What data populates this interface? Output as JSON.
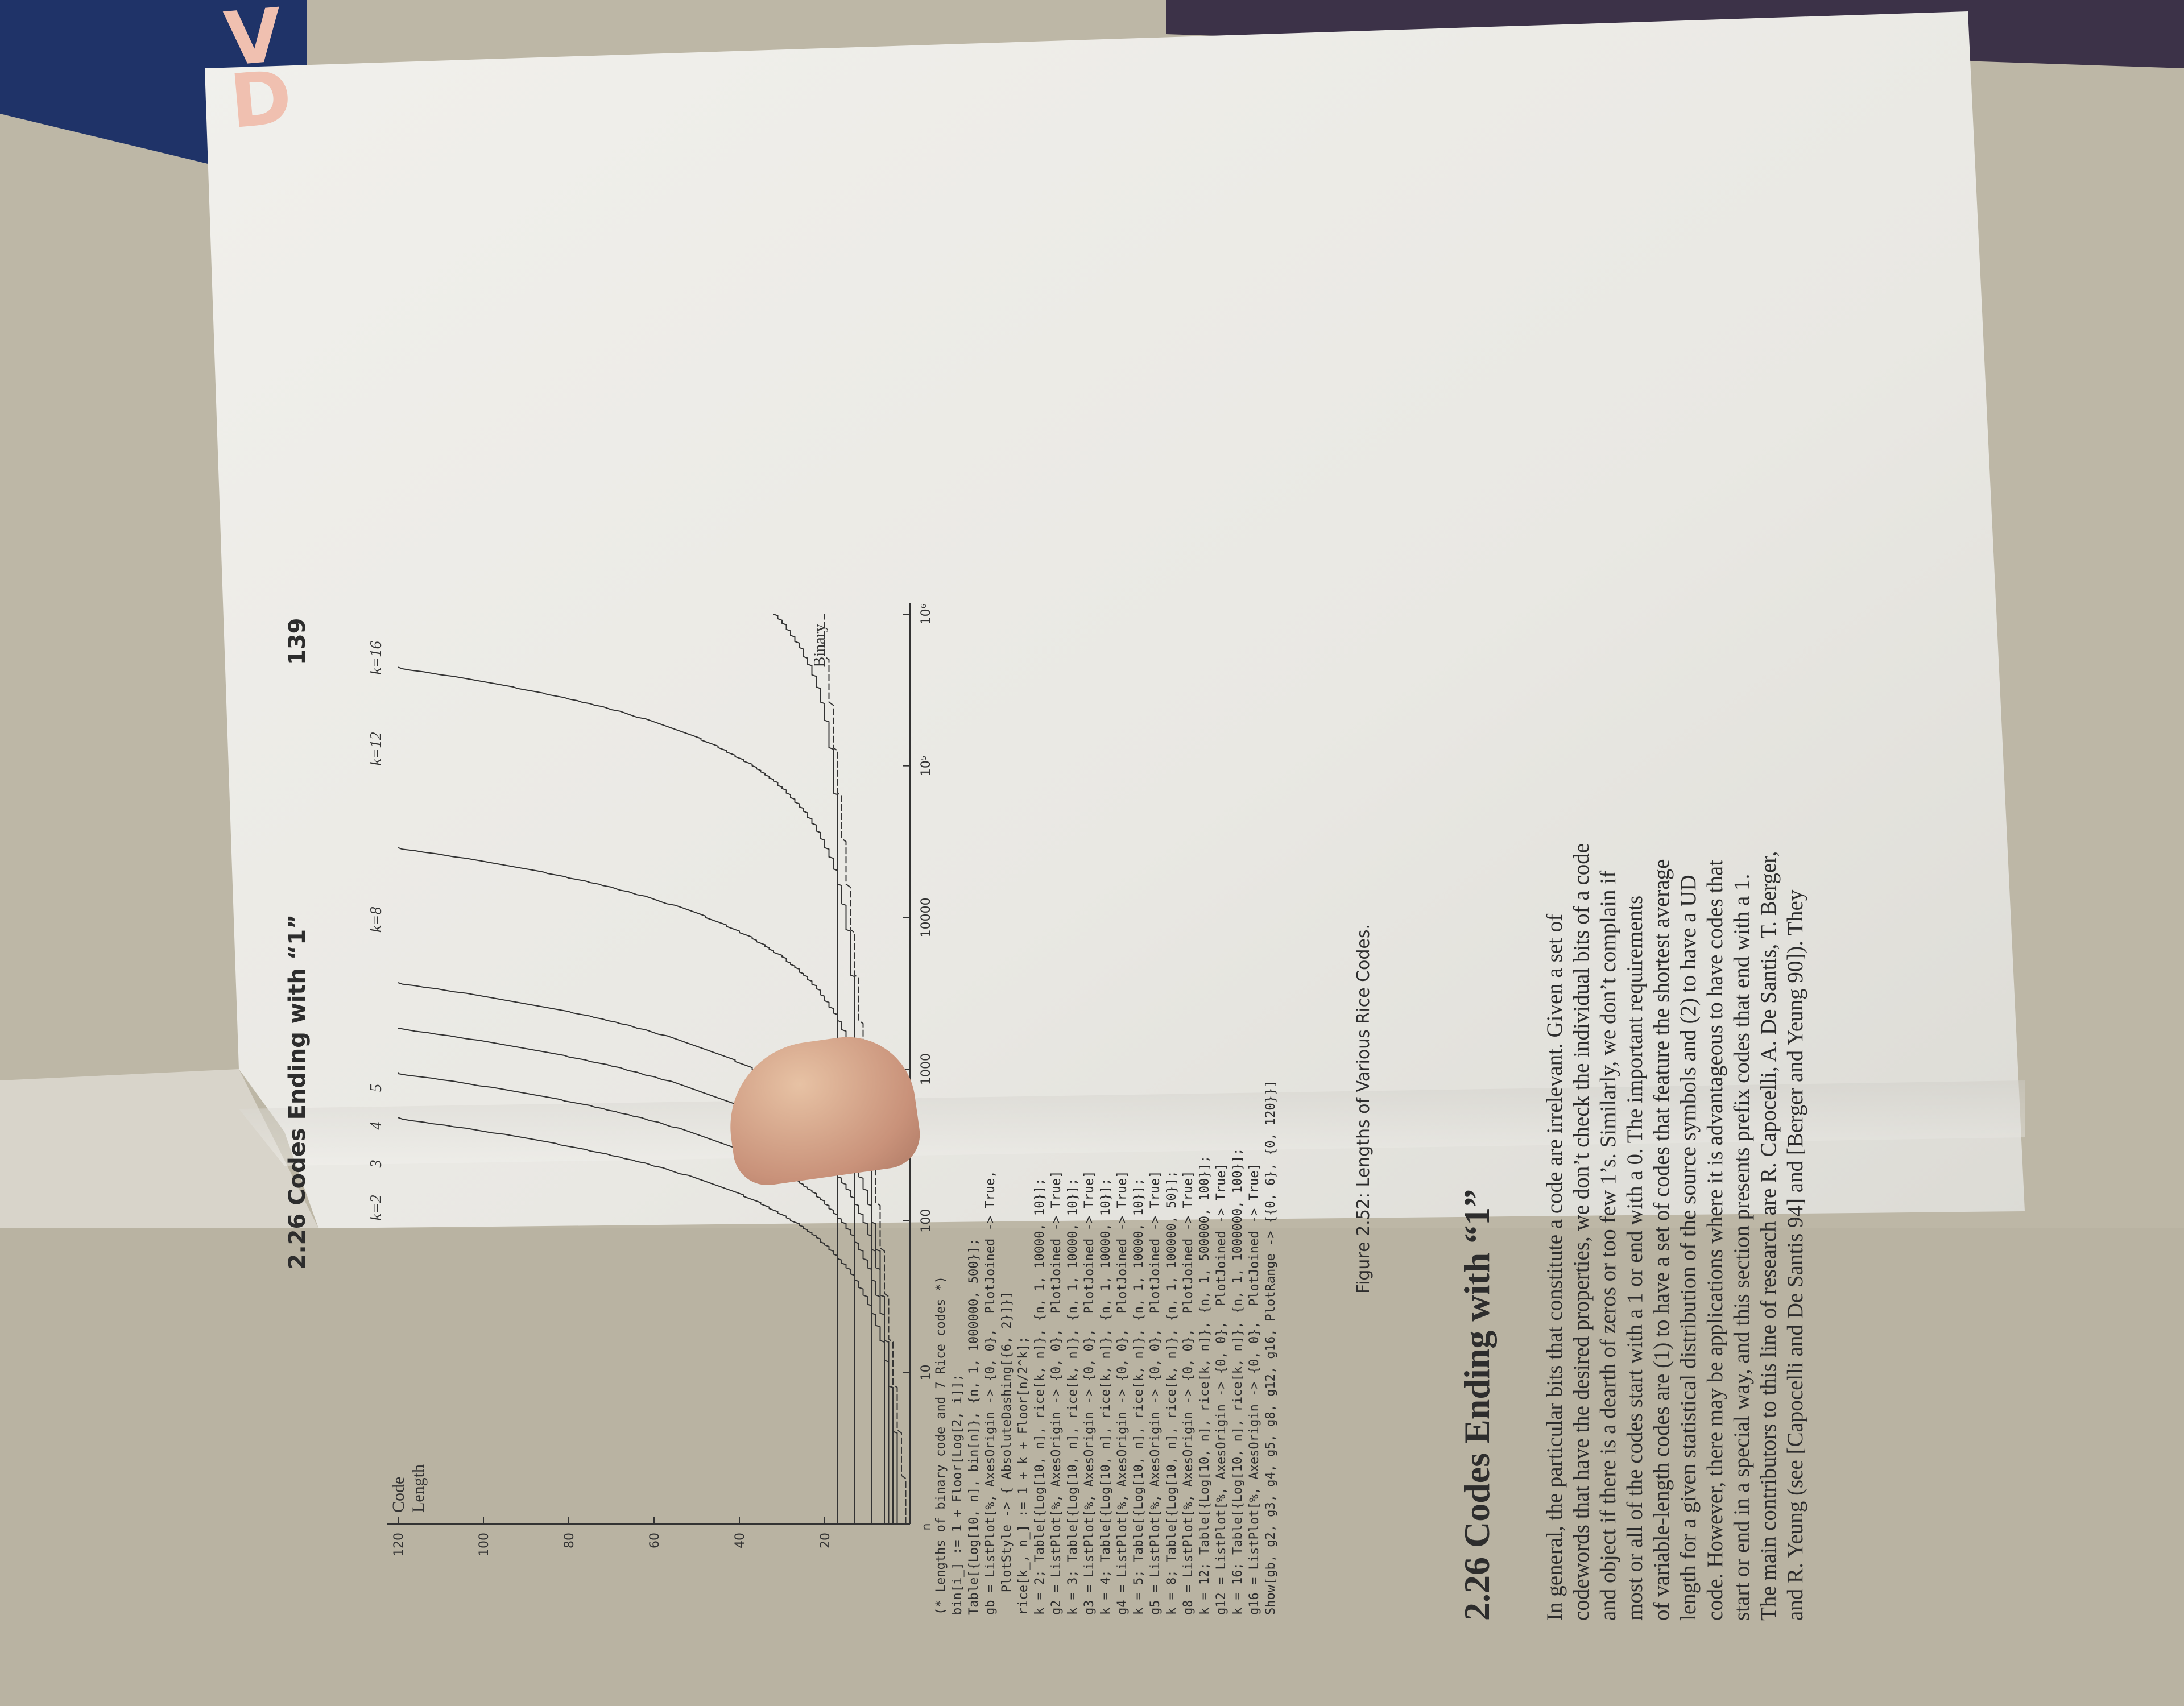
{
  "running_head": "2.26 Codes Ending with “1”",
  "page_number": "139",
  "book_title_fragment": "V\nD",
  "figure": {
    "ylabel_line1": "Code",
    "ylabel_line2": "Length",
    "y_ticks": [
      "20",
      "40",
      "60",
      "80",
      "100",
      "120"
    ],
    "x_ticks": [
      "10",
      "100",
      "1000",
      "10000",
      "10⁵",
      "10⁶"
    ],
    "x_origin": "n",
    "curve_labels": [
      "k=2",
      "3",
      "4",
      "5",
      "k=8",
      "k=12",
      "k=16"
    ],
    "binary_label": "Binary",
    "caption": "Figure 2.52: Lengths of Various Rice Codes."
  },
  "code_lines": [
    "(* Lengths of binary code and 7 Rice codes *)",
    "bin[i_] := 1 + Floor[Log[2, i]];",
    "Table[{Log[10, n], bin[n]}, {n, 1, 1000000, 500}];",
    "gb = ListPlot[%, AxesOrigin -> {0, 0},  PlotJoined -> True,",
    "   PlotStyle -> { AbsoluteDashing[{6, 2}]}]",
    "rice[k_, n_] := 1 + k + Floor[n/2^k];",
    "k = 2; Table[{Log[10, n], rice[k, n]}, {n, 1, 10000, 10}];",
    "g2 = ListPlot[%, AxesOrigin -> {0, 0},  PlotJoined -> True]",
    "k = 3; Table[{Log[10, n], rice[k, n]}, {n, 1, 10000, 10}];",
    "g3 = ListPlot[%, AxesOrigin -> {0, 0},  PlotJoined -> True]",
    "k = 4; Table[{Log[10, n], rice[k, n]}, {n, 1, 10000, 10}];",
    "g4 = ListPlot[%, AxesOrigin -> {0, 0},  PlotJoined -> True]",
    "k = 5; Table[{Log[10, n], rice[k, n]}, {n, 1, 10000, 10}];",
    "g5 = ListPlot[%, AxesOrigin -> {0, 0},  PlotJoined -> True]",
    "k = 8; Table[{Log[10, n], rice[k, n]}, {n, 1, 100000, 50}];",
    "g8 = ListPlot[%, AxesOrigin -> {0, 0},  PlotJoined -> True]",
    "k = 12; Table[{Log[10, n], rice[k, n]}, {n, 1, 500000, 100}];",
    "g12 = ListPlot[%, AxesOrigin -> {0, 0},  PlotJoined -> True]",
    "k = 16; Table[{Log[10, n], rice[k, n]}, {n, 1, 1000000, 100}];",
    "g16 = ListPlot[%, AxesOrigin -> {0, 0},  PlotJoined -> True]",
    "Show[gb, g2, g3, g4, g5, g8, g12, g16, PlotRange -> {{0, 6}, {0, 120}}]"
  ],
  "section_heading": "2.26 Codes Ending with “1”",
  "paragraph_lines": [
    "In general, the particular bits that constitute a code are irrelevant.  Given a set of",
    "codewords that have the desired properties, we don’t check the individual bits of a code",
    "and object if there is a dearth of zeros or too few 1’s.  Similarly, we don’t complain if",
    "most or all of the codes start with a 1 or end with a 0.  The important requirements",
    "of variable-length codes are (1) to have a set of codes that feature the shortest average",
    "length for a given statistical distribution of the source symbols and (2) to have a UD",
    "code.  However, there may be applications where it is advantageous to have codes that",
    "start or end in a special way, and this section presents prefix codes that end with a 1.",
    "The main contributors to this line of research are R. Capocelli, A. De Santis, T. Berger,",
    "and R. Yeung (see [Capocelli and De Santis 94] and [Berger and Yeung 90]).  They"
  ],
  "colors": {
    "paper": "#ecebe7",
    "ink": "#2d2d2d",
    "desk": "#b9b3a2"
  }
}
